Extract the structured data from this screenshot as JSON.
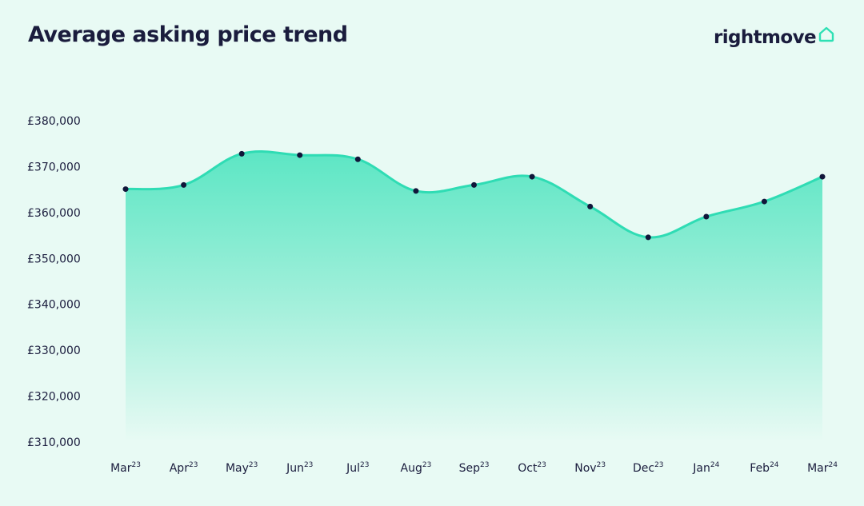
{
  "title": "Average asking price trend",
  "brand": {
    "name": "rightmove",
    "icon": "house-icon",
    "color": "#2ee0b4"
  },
  "colors": {
    "line": "#2fdcb4",
    "fill_top": "#5ce6c4",
    "fill_bottom": "#e8faf4",
    "marker": "#11163a",
    "text": "#1a1c3d"
  },
  "chart_data": {
    "type": "area",
    "title": "Average asking price trend",
    "xlabel": "",
    "ylabel": "",
    "ylim": [
      310000,
      380000
    ],
    "y_ticks": [
      380000,
      370000,
      360000,
      350000,
      340000,
      330000,
      320000,
      310000
    ],
    "y_tick_labels": [
      "£380,000",
      "£370,000",
      "£360,000",
      "£350,000",
      "£340,000",
      "£330,000",
      "£320,000",
      "£310,000"
    ],
    "categories": [
      {
        "month": "Mar",
        "year": "23"
      },
      {
        "month": "Apr",
        "year": "23"
      },
      {
        "month": "May",
        "year": "23"
      },
      {
        "month": "Jun",
        "year": "23"
      },
      {
        "month": "Jul",
        "year": "23"
      },
      {
        "month": "Aug",
        "year": "23"
      },
      {
        "month": "Sep",
        "year": "23"
      },
      {
        "month": "Oct",
        "year": "23"
      },
      {
        "month": "Nov",
        "year": "23"
      },
      {
        "month": "Dec",
        "year": "23"
      },
      {
        "month": "Jan",
        "year": "24"
      },
      {
        "month": "Feb",
        "year": "24"
      },
      {
        "month": "Mar",
        "year": "24"
      }
    ],
    "values": [
      365100,
      366000,
      372800,
      372500,
      371600,
      364700,
      366000,
      367800,
      361300,
      354600,
      359100,
      362400,
      367800
    ],
    "grid": false,
    "markers": true
  }
}
